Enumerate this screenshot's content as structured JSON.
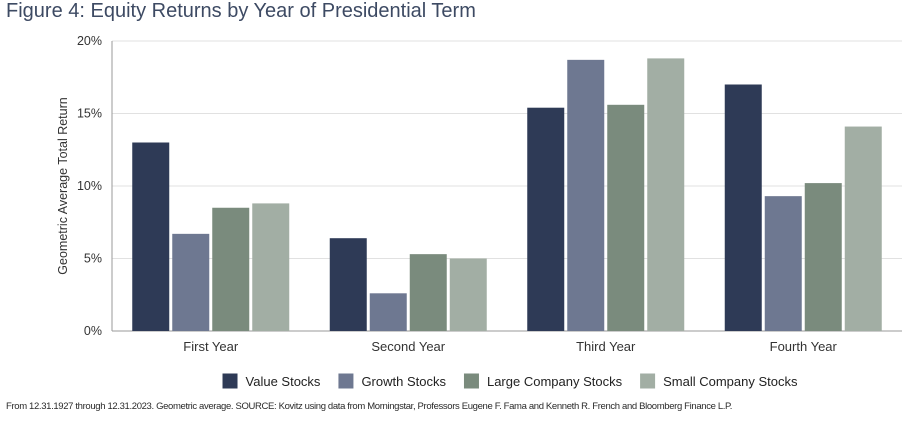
{
  "figure_title": "Figure 4: Equity Returns by Year of Presidential Term",
  "footnote": "From 12.31.1927 through 12.31.2023. Geometric average. SOURCE: Kovitz using data from Morningstar, Professors Eugene F. Fama and Kenneth R. French and Bloomberg Finance L.P.",
  "colors": {
    "value": "#2e3a56",
    "growth": "#6e7891",
    "large": "#7a8b7d",
    "small": "#a2aea4",
    "grid": "#e1e1e1",
    "axis": "#9a9a9a",
    "text": "#333333"
  },
  "chart_data": {
    "type": "bar",
    "title": "Figure 4: Equity Returns by Year of Presidential Term",
    "xlabel": "",
    "ylabel": "Geometric Average Total Return",
    "ylim": [
      0,
      20
    ],
    "yticks": [
      0,
      5,
      10,
      15,
      20
    ],
    "ytick_labels": [
      "0%",
      "5%",
      "10%",
      "15%",
      "20%"
    ],
    "grid": true,
    "legend_position": "bottom",
    "categories": [
      "First Year",
      "Second Year",
      "Third Year",
      "Fourth Year"
    ],
    "series": [
      {
        "name": "Value Stocks",
        "color": "#2e3a56",
        "values": [
          13.0,
          6.4,
          15.4,
          17.0
        ]
      },
      {
        "name": "Growth Stocks",
        "color": "#6e7891",
        "values": [
          6.7,
          2.6,
          18.7,
          9.3
        ]
      },
      {
        "name": "Large Company Stocks",
        "color": "#7a8b7d",
        "values": [
          8.5,
          5.3,
          15.6,
          10.2
        ]
      },
      {
        "name": "Small Company Stocks",
        "color": "#a2aea4",
        "values": [
          8.8,
          5.0,
          18.8,
          14.1
        ]
      }
    ]
  }
}
